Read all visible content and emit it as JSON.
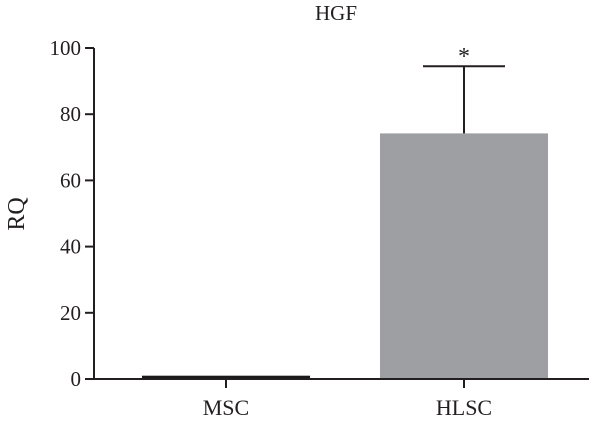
{
  "chart_data": {
    "type": "bar",
    "title": "HGF",
    "xlabel": "",
    "ylabel": "RQ",
    "ylim": [
      0,
      100
    ],
    "yticks": [
      0,
      20,
      40,
      60,
      80,
      100
    ],
    "categories": [
      "MSC",
      "HLSC"
    ],
    "values": [
      1,
      74.2
    ],
    "error_upper": [
      null,
      94.5
    ],
    "significance": [
      "",
      "*"
    ],
    "colors": [
      "#1a1a1a",
      "#9d9fa2"
    ],
    "grid": false,
    "legend": "none"
  }
}
